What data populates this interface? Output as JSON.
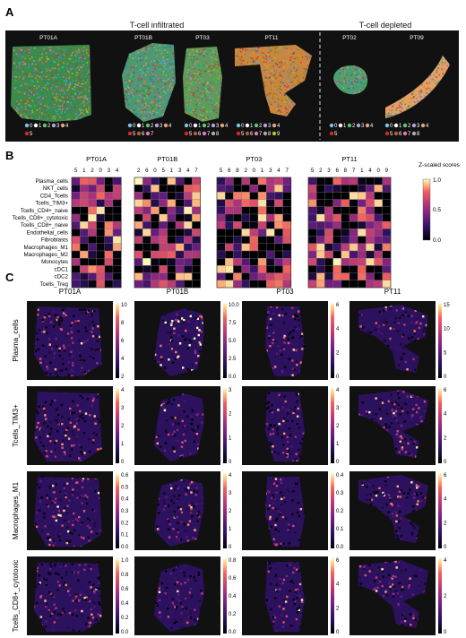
{
  "panel_a": {
    "letter": "A",
    "group_infiltrated": "T-cell infiltrated",
    "group_depleted": "T-cell depleted",
    "samples": [
      {
        "name": "PT01A",
        "legend_row1": [
          "0",
          "1",
          "2",
          "3",
          "4"
        ],
        "legend_row2": [
          "5"
        ]
      },
      {
        "name": "PT01B",
        "legend_row1": [
          "0",
          "1",
          "2",
          "3",
          "4"
        ],
        "legend_row2": [
          "5",
          "6",
          "7"
        ]
      },
      {
        "name": "PT03",
        "legend_row1": [
          "0",
          "1",
          "2",
          "3",
          "4"
        ],
        "legend_row2": [
          "5",
          "6",
          "7",
          "8"
        ]
      },
      {
        "name": "PT11",
        "legend_row1": [
          "0",
          "1",
          "2",
          "3",
          "4"
        ],
        "legend_row2": [
          "5",
          "6",
          "7",
          "8",
          "9"
        ]
      },
      {
        "name": "PT02",
        "legend_row1": [
          "0",
          "1",
          "2",
          "3",
          "4"
        ],
        "legend_row2": [
          "5"
        ]
      },
      {
        "name": "PT09",
        "legend_row1": [
          "0",
          "1",
          "2",
          "3",
          "4"
        ],
        "legend_row2": [
          "5",
          "6",
          "7",
          "8"
        ]
      }
    ]
  },
  "panel_b": {
    "letter": "B",
    "colorbar_title": "Z-scaled scores",
    "colorbar_ticks": [
      "1.0",
      "0.5",
      "0.0"
    ],
    "row_labels": [
      "Plasma_cells",
      "NKT_cells",
      "CD4_Tcells",
      "Tcells_TIM3+",
      "Tcells_CD4+_naive",
      "Tcells_CD8+_cytotoxic",
      "Tcells_CD8+_naive",
      "Endothelial_cells",
      "Fibroblasts",
      "Macrophages_M1",
      "Macrophages_M2",
      "Monocytes",
      "cDC1",
      "cDC2",
      "Tcells_Treg"
    ],
    "heatmaps": [
      {
        "title": "PT01A",
        "columns": [
          "5",
          "1",
          "2",
          "0",
          "3",
          "4"
        ]
      },
      {
        "title": "PT01B",
        "columns": [
          "2",
          "6",
          "0",
          "5",
          "1",
          "3",
          "4",
          "7"
        ]
      },
      {
        "title": "PT03",
        "columns": [
          "5",
          "6",
          "8",
          "2",
          "0",
          "1",
          "3",
          "4",
          "7"
        ]
      },
      {
        "title": "PT11",
        "columns": [
          "5",
          "2",
          "3",
          "6",
          "8",
          "7",
          "1",
          "4",
          "0",
          "9"
        ]
      }
    ]
  },
  "panel_c": {
    "letter": "C",
    "columns": [
      "PT01A",
      "PT01B",
      "PT03",
      "PT11"
    ],
    "rows": [
      {
        "label": "Plasma_cells",
        "ticks": [
          [
            "10",
            "8",
            "6",
            "4",
            "2"
          ],
          [
            "10.0",
            "7.5",
            "5.0",
            "2.5",
            "0.0"
          ],
          [
            "6",
            "4",
            "2",
            "0"
          ],
          [
            "15",
            "10",
            "5",
            "0"
          ]
        ]
      },
      {
        "label": "Tcells_TIM3+",
        "ticks": [
          [
            "4",
            "3",
            "2",
            "1",
            "0"
          ],
          [
            "3",
            "2",
            "1",
            "0"
          ],
          [
            "4",
            "3",
            "2",
            "1",
            "0"
          ],
          [
            "6",
            "4",
            "2",
            "0"
          ]
        ]
      },
      {
        "label": "Macrophages_M1",
        "ticks": [
          [
            "0.6",
            "0.5",
            "0.4",
            "0.3",
            "0.2",
            "0.1",
            "0.0"
          ],
          [
            "4",
            "3",
            "2",
            "1",
            "0"
          ],
          [
            "0.4",
            "0.3",
            "0.2",
            "0.1",
            "0.0"
          ],
          [
            "6",
            "4",
            "2",
            "0"
          ]
        ]
      },
      {
        "label": "Tcells_CD8+_cytotoxic",
        "ticks": [
          [
            "1.0",
            "0.8",
            "0.6",
            "0.4",
            "0.2",
            "0.0"
          ],
          [
            "0.8",
            "0.6",
            "0.4",
            "0.2",
            "0.0"
          ],
          [
            "6",
            "4",
            "2",
            "0"
          ],
          [
            "4",
            "2",
            "0"
          ]
        ]
      }
    ]
  },
  "colors": {
    "cluster": [
      "#1f77b4",
      "#ff7f0e",
      "#2ca02c",
      "#d62728",
      "#9467bd",
      "#8c564b",
      "#e377c2",
      "#7f7f7f",
      "#bcbd22",
      "#17becf"
    ],
    "legend_dot": [
      "#79c5e9",
      "#ffffff",
      "#63c470",
      "#b7a0d8",
      "#e8a17a",
      "#d62728",
      "#b75a3a",
      "#e377c2",
      "#aaaaaa",
      "#bcbd22"
    ],
    "panel_bg": "#111111",
    "heat_low": "#000004",
    "heat_high": "#fcfdbf"
  }
}
